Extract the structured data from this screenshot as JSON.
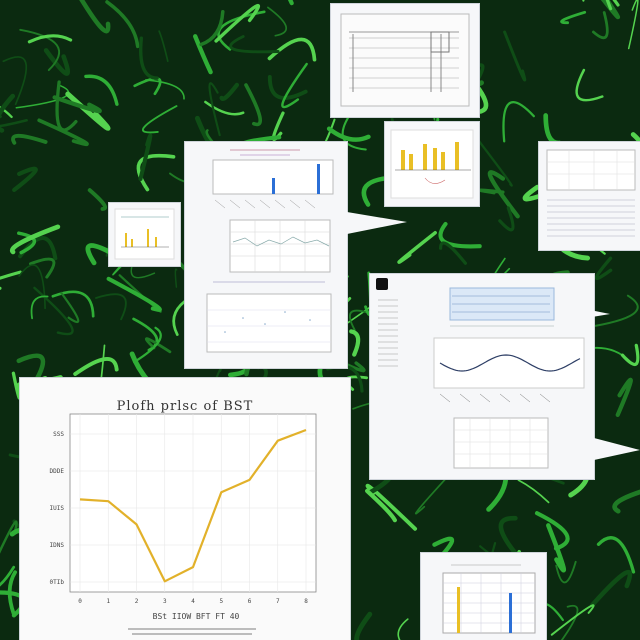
{
  "scene": {
    "background_color": "#0b2a10",
    "vine_colors": [
      "#1f7a25",
      "#2fae36",
      "#55d34f",
      "#0f4d16"
    ]
  },
  "main_chart": {
    "title": "Plofh prlsc of BST",
    "series_color": "#e2b12a",
    "chart_data": {
      "type": "line",
      "title": "Plofh prlsc of BST",
      "xlabel": "BSt  IIOW  BFT FT 40",
      "ylabel": "",
      "x_ticks": [
        "0",
        "1",
        "2",
        "3",
        "4",
        "5",
        "6",
        "7",
        "8"
      ],
      "y_ticks": [
        "0TIb",
        "IDNS",
        "IUIS",
        "DDDE",
        "SSS"
      ],
      "x": [
        0,
        1,
        2,
        3,
        4,
        5,
        6,
        7,
        8
      ],
      "values": [
        0.52,
        0.51,
        0.38,
        0.06,
        0.14,
        0.56,
        0.63,
        0.85,
        0.91
      ],
      "ylim": [
        0,
        1
      ],
      "grid": true
    }
  },
  "small_charts": {
    "bar_yellow_color": "#e9bf25",
    "bar_blue_color": "#2b6fd6",
    "wave_color": "#2e3f66",
    "line_color": "#d9a020"
  }
}
